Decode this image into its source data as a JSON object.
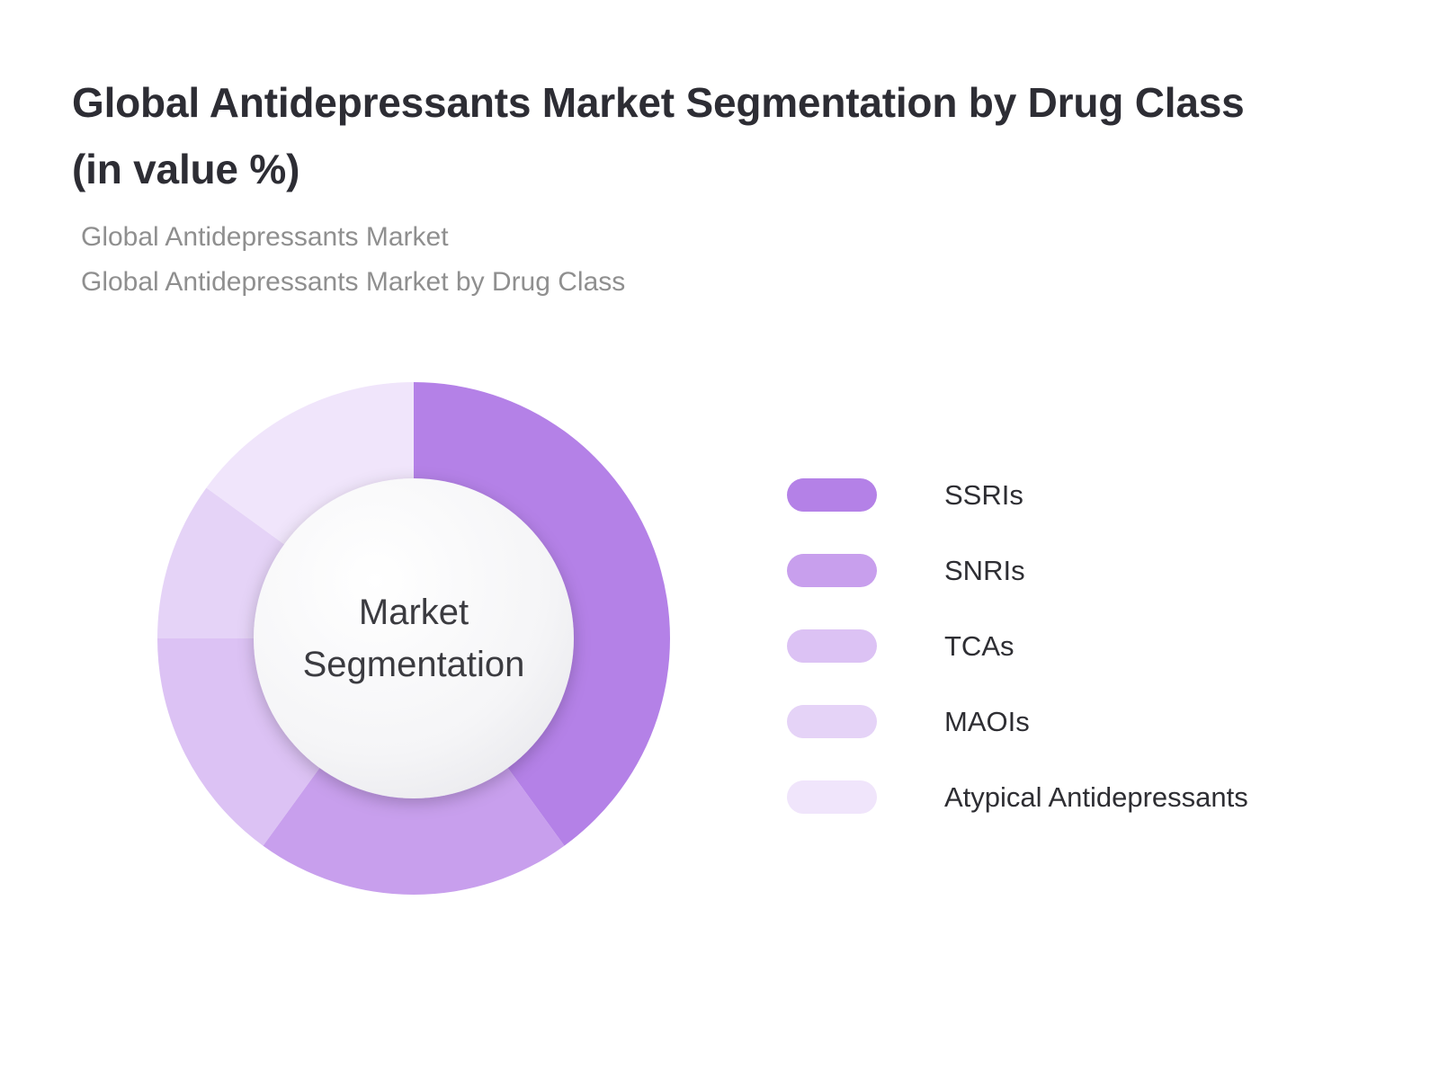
{
  "header": {
    "title": "Global Antidepressants Market Segmentation by Drug Class (in value %)",
    "subtitle1": "Global Antidepressants Market",
    "subtitle2": "Global Antidepressants Market by Drug Class"
  },
  "chart_data": {
    "type": "pie",
    "subtype": "donut",
    "title": "Global Antidepressants Market Segmentation by Drug Class (in value %)",
    "center_label": "Market Segmentation",
    "categories": [
      "SSRIs",
      "SNRIs",
      "TCAs",
      "MAOIs",
      "Atypical Antidepressants"
    ],
    "values": [
      40,
      20,
      15,
      10,
      15
    ],
    "unit": "%",
    "colors": [
      "#b481e7",
      "#c89fed",
      "#dcc2f4",
      "#e5d3f7",
      "#f0e5fb"
    ],
    "start_angle_deg": 0,
    "direction": "clockwise",
    "legend_position": "right",
    "center_circle": {
      "fill_center": "#ffffff",
      "fill_edge": "#e3e3e8"
    }
  }
}
